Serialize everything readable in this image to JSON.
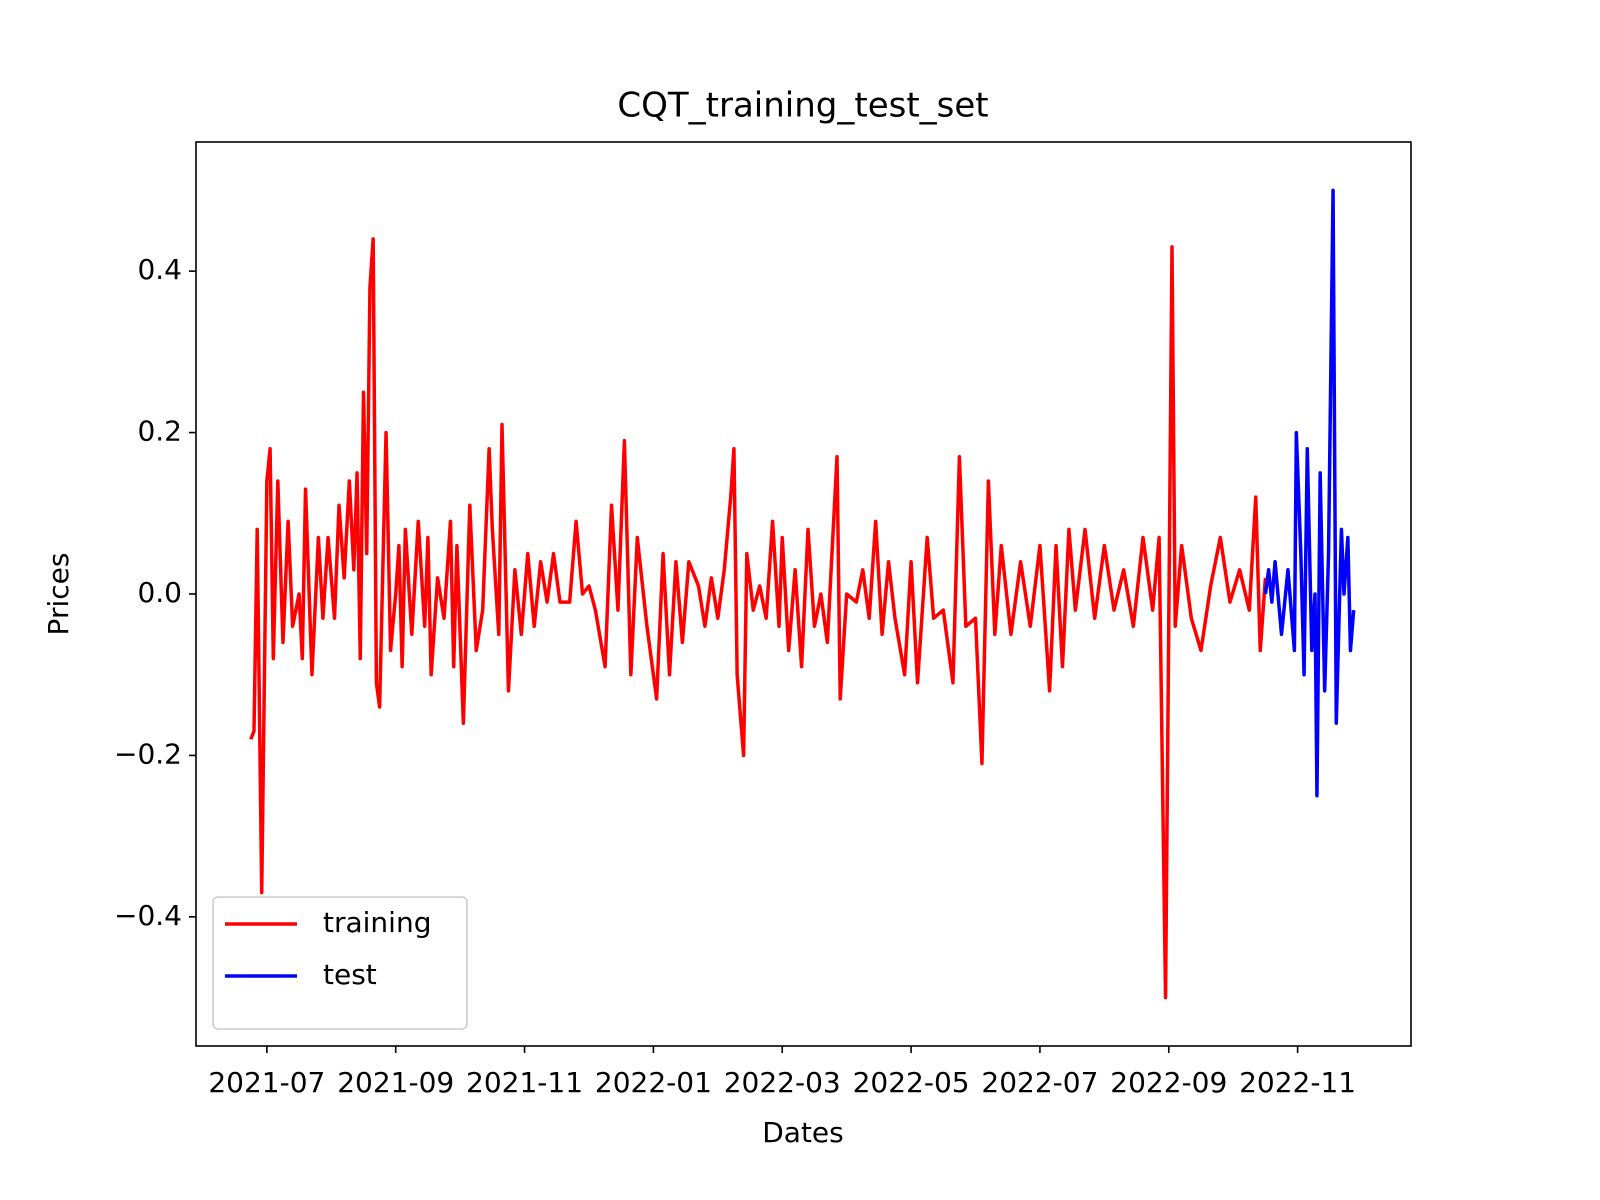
{
  "chart_data": {
    "type": "line",
    "title": "CQT_training_test_set",
    "x_label": "Dates",
    "y_label": "Prices",
    "xlim": [
      -1.1,
      17.76
    ],
    "ylim": [
      -0.56,
      0.56
    ],
    "xticks": [
      {
        "value": 0,
        "label": "2021-07"
      },
      {
        "value": 2,
        "label": "2021-09"
      },
      {
        "value": 4,
        "label": "2021-11"
      },
      {
        "value": 6,
        "label": "2022-01"
      },
      {
        "value": 8,
        "label": "2022-03"
      },
      {
        "value": 10,
        "label": "2022-05"
      },
      {
        "value": 12,
        "label": "2022-07"
      },
      {
        "value": 14,
        "label": "2022-09"
      },
      {
        "value": 16,
        "label": "2022-11"
      }
    ],
    "yticks": [
      {
        "value": -0.4,
        "label": "−0.4"
      },
      {
        "value": -0.2,
        "label": "−0.2"
      },
      {
        "value": 0,
        "label": "0.0"
      },
      0.2,
      0.4
    ],
    "legend": "lower left",
    "series": [
      {
        "name": "training",
        "color": "#ff0000",
        "x": [
          -0.25,
          -0.2,
          -0.15,
          -0.08,
          0.0,
          0.05,
          0.1,
          0.17,
          0.25,
          0.33,
          0.4,
          0.5,
          0.55,
          0.6,
          0.7,
          0.8,
          0.87,
          0.95,
          1.05,
          1.12,
          1.2,
          1.28,
          1.35,
          1.4,
          1.45,
          1.5,
          1.55,
          1.6,
          1.65,
          1.7,
          1.75,
          1.85,
          1.92,
          2.0,
          2.05,
          2.1,
          2.15,
          2.25,
          2.35,
          2.45,
          2.5,
          2.55,
          2.65,
          2.75,
          2.85,
          2.9,
          2.95,
          3.05,
          3.15,
          3.25,
          3.35,
          3.45,
          3.5,
          3.6,
          3.65,
          3.75,
          3.85,
          3.95,
          4.05,
          4.15,
          4.25,
          4.35,
          4.45,
          4.55,
          4.7,
          4.8,
          4.9,
          5.0,
          5.1,
          5.25,
          5.35,
          5.45,
          5.55,
          5.65,
          5.75,
          5.9,
          6.05,
          6.15,
          6.25,
          6.35,
          6.45,
          6.55,
          6.7,
          6.8,
          6.9,
          7.0,
          7.1,
          7.2,
          7.25,
          7.3,
          7.4,
          7.45,
          7.55,
          7.65,
          7.75,
          7.85,
          7.95,
          8.0,
          8.1,
          8.2,
          8.3,
          8.4,
          8.5,
          8.6,
          8.7,
          8.85,
          8.9,
          9.0,
          9.15,
          9.25,
          9.35,
          9.45,
          9.55,
          9.65,
          9.75,
          9.9,
          10.0,
          10.1,
          10.25,
          10.35,
          10.5,
          10.65,
          10.75,
          10.85,
          11.0,
          11.1,
          11.2,
          11.3,
          11.4,
          11.55,
          11.7,
          11.85,
          12.0,
          12.15,
          12.25,
          12.35,
          12.45,
          12.55,
          12.7,
          12.85,
          13.0,
          13.15,
          13.3,
          13.45,
          13.6,
          13.75,
          13.85,
          13.95,
          14.05,
          14.1,
          14.2,
          14.35,
          14.5,
          14.65,
          14.8,
          14.95,
          15.1,
          15.25,
          15.35,
          15.42,
          15.5
        ],
        "values": [
          -0.18,
          -0.17,
          0.08,
          -0.37,
          0.14,
          0.18,
          -0.08,
          0.14,
          -0.06,
          0.09,
          -0.04,
          0.0,
          -0.08,
          0.13,
          -0.1,
          0.07,
          -0.03,
          0.07,
          -0.03,
          0.11,
          0.02,
          0.14,
          0.03,
          0.15,
          -0.08,
          0.25,
          0.05,
          0.38,
          0.44,
          -0.11,
          -0.14,
          0.2,
          -0.07,
          0.0,
          0.06,
          -0.09,
          0.08,
          -0.05,
          0.09,
          -0.04,
          0.07,
          -0.1,
          0.02,
          -0.03,
          0.09,
          -0.09,
          0.06,
          -0.16,
          0.11,
          -0.07,
          -0.02,
          0.18,
          0.08,
          -0.05,
          0.21,
          -0.12,
          0.03,
          -0.05,
          0.05,
          -0.04,
          0.04,
          -0.01,
          0.05,
          -0.01,
          -0.01,
          0.09,
          0.0,
          0.01,
          -0.02,
          -0.09,
          0.11,
          -0.02,
          0.19,
          -0.1,
          0.07,
          -0.04,
          -0.13,
          0.05,
          -0.1,
          0.04,
          -0.06,
          0.04,
          0.01,
          -0.04,
          0.02,
          -0.03,
          0.03,
          0.12,
          0.18,
          -0.1,
          -0.2,
          0.05,
          -0.02,
          0.01,
          -0.03,
          0.09,
          -0.04,
          0.07,
          -0.07,
          0.03,
          -0.09,
          0.08,
          -0.04,
          0.0,
          -0.06,
          0.17,
          -0.13,
          0.0,
          -0.01,
          0.03,
          -0.03,
          0.09,
          -0.05,
          0.04,
          -0.03,
          -0.1,
          0.04,
          -0.11,
          0.07,
          -0.03,
          -0.02,
          -0.11,
          0.17,
          -0.04,
          -0.03,
          -0.21,
          0.14,
          -0.05,
          0.06,
          -0.05,
          0.04,
          -0.04,
          0.06,
          -0.12,
          0.06,
          -0.09,
          0.08,
          -0.02,
          0.08,
          -0.03,
          0.06,
          -0.02,
          0.03,
          -0.04,
          0.07,
          -0.02,
          0.07,
          -0.5,
          0.43,
          -0.04,
          0.06,
          -0.03,
          -0.07,
          0.01,
          0.07,
          -0.01,
          0.03,
          -0.02,
          0.12,
          -0.07,
          0.02
        ]
      },
      {
        "name": "test",
        "color": "#0000ff",
        "x": [
          15.5,
          15.55,
          15.6,
          15.65,
          15.75,
          15.85,
          15.95,
          15.98,
          16.05,
          16.1,
          16.15,
          16.22,
          16.27,
          16.3,
          16.35,
          16.42,
          16.48,
          16.55,
          16.6,
          16.68,
          16.72,
          16.78,
          16.82,
          16.87
        ],
        "values": [
          0.0,
          0.03,
          -0.01,
          0.04,
          -0.05,
          0.03,
          -0.07,
          0.2,
          0.05,
          -0.1,
          0.18,
          -0.07,
          0.0,
          -0.25,
          0.15,
          -0.12,
          0.05,
          0.5,
          -0.16,
          0.08,
          0.0,
          0.07,
          -0.07,
          -0.02
        ]
      }
    ]
  }
}
